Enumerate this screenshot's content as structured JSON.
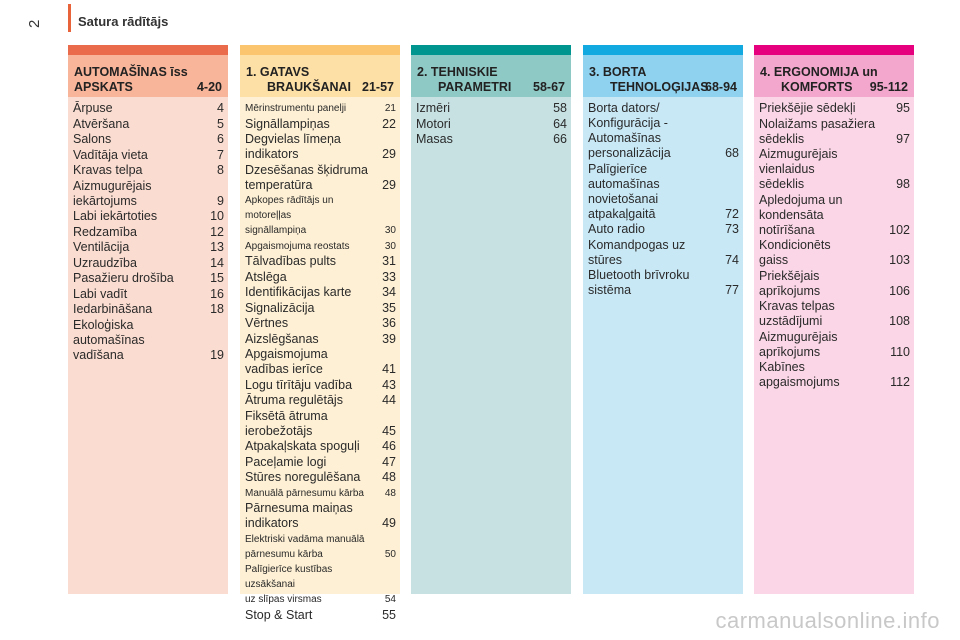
{
  "page": {
    "number": "2",
    "header_title": "Satura rādītājs"
  },
  "columns": [
    {
      "id": "automasinas",
      "head_line1": "AUTOMAŠĪNAS īss",
      "head_line2": "APSKATS",
      "head_pages": "4-20",
      "strip_color": "#ea6b4c",
      "head_color": "#f9b59a",
      "body_color": "#fbdcd0",
      "entries": [
        {
          "t": "Ārpuse",
          "p": "4"
        },
        {
          "t": "Atvēršana",
          "p": "5"
        },
        {
          "t": "Salons",
          "p": "6"
        },
        {
          "t": "Vadītāja vieta",
          "p": "7"
        },
        {
          "t": "Kravas telpa",
          "p": "8"
        },
        {
          "t": "Aizmugurējais\n    iekārtojums",
          "p": "9"
        },
        {
          "t": "Labi iekārtoties",
          "p": "10"
        },
        {
          "t": "Redzamība",
          "p": "12"
        },
        {
          "t": "Ventilācija",
          "p": "13"
        },
        {
          "t": "Uzraudzība",
          "p": "14"
        },
        {
          "t": "Pasažieru drošība",
          "p": "15"
        },
        {
          "t": "Labi vadīt",
          "p": "16"
        },
        {
          "t": "Iedarbināšana",
          "p": "18"
        },
        {
          "t": "Ekoloģiska\n    automašīnas\n    vadīšana",
          "p": "19"
        }
      ]
    },
    {
      "id": "gatavs",
      "head_line1": "1. GATAVS",
      "head_line2": "BRAUKŠANAI",
      "head_pages": "21-57",
      "strip_color": "#fbc56f",
      "head_color": "#fde0a6",
      "body_color": "#fef0d4",
      "entries": [
        {
          "t": "Mērinstrumentu panelji",
          "p": "21",
          "small": true
        },
        {
          "t": "Signāllampiņas",
          "p": "22"
        },
        {
          "t": "Degvielas līmeņa\n    indikators",
          "p": "29"
        },
        {
          "t": "Dzesēšanas šķidruma\n    temperatūra",
          "p": "29"
        },
        {
          "t": "Apkopes rādītājs un motoreļļas\n    signāllampiņa",
          "p": "30",
          "small": true
        },
        {
          "t": "Apgaismojuma reostats",
          "p": "30",
          "small": true
        },
        {
          "t": "Tālvadības pults",
          "p": "31"
        },
        {
          "t": "Atslēga",
          "p": "33"
        },
        {
          "t": "Identifikācijas karte",
          "p": "34"
        },
        {
          "t": "Signalizācija",
          "p": "35"
        },
        {
          "t": "Vērtnes",
          "p": "36"
        },
        {
          "t": "Aizslēgšanas",
          "p": "39"
        },
        {
          "t": "Apgaismojuma\n    vadības ierīce",
          "p": "41"
        },
        {
          "t": "Logu tīrītāju vadība",
          "p": "43"
        },
        {
          "t": "Ātruma regulētājs",
          "p": "44"
        },
        {
          "t": "Fiksētā ātruma\n    ierobežotājs",
          "p": "45"
        },
        {
          "t": "Atpakaļskata spoguļi",
          "p": "46"
        },
        {
          "t": "Paceļamie logi",
          "p": "47"
        },
        {
          "t": "Stūres noregulēšana",
          "p": "48"
        },
        {
          "t": "Manuālā pārnesumu kārba",
          "p": "48",
          "small": true
        },
        {
          "t": "Pārnesuma maiņas\n    indikators",
          "p": "49"
        },
        {
          "t": "Elektriski vadāma manuālā\n    pārnesumu kārba",
          "p": "50",
          "small": true
        },
        {
          "t": "Palīgierīce kustības uzsākšanai\n    uz slīpas virsmas",
          "p": "54",
          "small": true
        },
        {
          "t": "Stop & Start",
          "p": "55"
        }
      ]
    },
    {
      "id": "tehniskie",
      "head_line1": "2. TEHNISKIE",
      "head_line2": "PARAMETRI",
      "head_pages": "58-67",
      "strip_color": "#00958e",
      "head_color": "#8fc9c6",
      "body_color": "#c7e1e3",
      "entries": [
        {
          "t": "Izmēri",
          "p": "58"
        },
        {
          "t": "Motori",
          "p": "64"
        },
        {
          "t": "Masas",
          "p": "66"
        }
      ]
    },
    {
      "id": "borta",
      "head_line1": "3. BORTA",
      "head_line2": "TEHNOLOĢIJAS",
      "head_pages": "68-94",
      "strip_color": "#12a8e0",
      "head_color": "#8fd2f0",
      "body_color": "#c8e8f6",
      "entries": [
        {
          "t": "Borta dators/\n    Konfigurācija -\n    Automašīnas\n    personalizācija",
          "p": "68"
        },
        {
          "t": "Palīgierīce\n    automašīnas\n    novietošanai\n    atpakaļgaitā",
          "p": "72"
        },
        {
          "t": "Auto radio",
          "p": "73"
        },
        {
          "t": "Komandpogas uz\n    stūres",
          "p": "74"
        },
        {
          "t": "Bluetooth brīvroku\n    sistēma",
          "p": "77"
        }
      ]
    },
    {
      "id": "ergonomija",
      "head_line1": "4. ERGONOMIJA un",
      "head_line2": "KOMFORTS",
      "head_pages": "95-112",
      "strip_color": "#e6007e",
      "head_color": "#f4a7cd",
      "body_color": "#fbd6e6",
      "entries": [
        {
          "t": "Priekšējie sēdekļi",
          "p": "95"
        },
        {
          "t": "Nolaižams pasažiera\n    sēdeklis",
          "p": "97"
        },
        {
          "t": "Aizmugurējais\n    vienlaidus\n    sēdeklis",
          "p": "98"
        },
        {
          "t": "Apledojuma un\n    kondensāta\n    notīrīšana",
          "p": "102"
        },
        {
          "t": "Kondicionēts\n    gaiss",
          "p": "103"
        },
        {
          "t": "Priekšējais\n    aprīkojums",
          "p": "106"
        },
        {
          "t": "Kravas telpas\n    uzstādījumi",
          "p": "108"
        },
        {
          "t": "Aizmugurējais\n    aprīkojums",
          "p": "110"
        },
        {
          "t": "Kabīnes\n    apgaismojums",
          "p": "112"
        }
      ]
    }
  ],
  "watermark": "carmanualsonline.info"
}
